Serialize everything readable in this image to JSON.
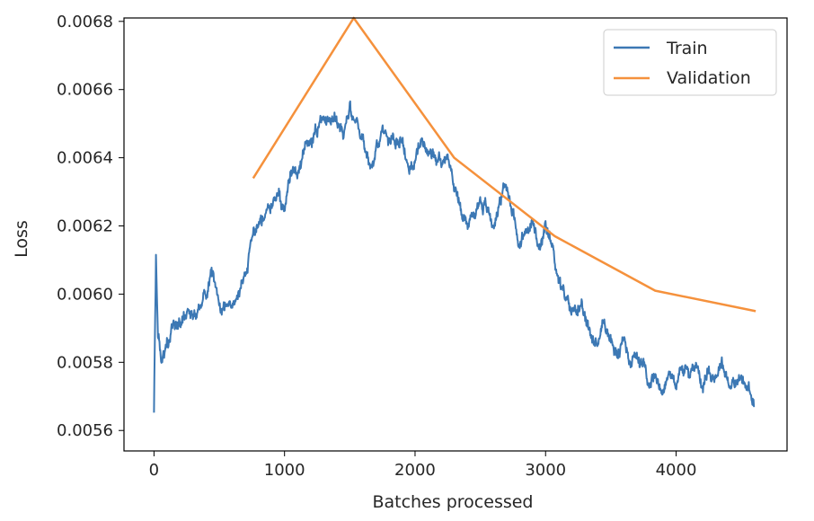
{
  "chart_data": {
    "type": "line",
    "xlabel": "Batches processed",
    "ylabel": "Loss",
    "xlim": [
      -230,
      4850
    ],
    "ylim": [
      0.00554,
      0.00681
    ],
    "x_ticks": [
      0,
      1000,
      2000,
      3000,
      4000
    ],
    "x_tick_labels": [
      "0",
      "1000",
      "2000",
      "3000",
      "4000"
    ],
    "y_ticks": [
      0.0056,
      0.0058,
      0.006,
      0.0062,
      0.0064,
      0.0066,
      0.0068
    ],
    "y_tick_labels": [
      "0.0056",
      "0.0058",
      "0.0060",
      "0.0062",
      "0.0064",
      "0.0066",
      "0.0068"
    ],
    "grid": false,
    "legend": {
      "placement": "top-right"
    },
    "series": [
      {
        "name": "Train",
        "color": "#3c78b4",
        "x": [
          0,
          15,
          30,
          60,
          100,
          150,
          200,
          250,
          300,
          350,
          400,
          450,
          480,
          520,
          560,
          600,
          650,
          700,
          760,
          800,
          850,
          900,
          950,
          1000,
          1050,
          1100,
          1150,
          1200,
          1250,
          1300,
          1350,
          1400,
          1450,
          1500,
          1540,
          1600,
          1650,
          1700,
          1750,
          1800,
          1850,
          1900,
          1950,
          2000,
          2050,
          2100,
          2150,
          2200,
          2250,
          2300,
          2350,
          2400,
          2450,
          2500,
          2550,
          2600,
          2650,
          2700,
          2750,
          2800,
          2850,
          2900,
          2950,
          3000,
          3050,
          3100,
          3150,
          3200,
          3250,
          3300,
          3350,
          3400,
          3450,
          3500,
          3550,
          3600,
          3650,
          3700,
          3750,
          3800,
          3850,
          3900,
          3950,
          4000,
          4050,
          4100,
          4150,
          4200,
          4250,
          4300,
          4350,
          4400,
          4450,
          4500,
          4550,
          4600
        ],
        "values": [
          0.00565,
          0.00611,
          0.00588,
          0.0058,
          0.00585,
          0.00592,
          0.0059,
          0.00595,
          0.00592,
          0.00598,
          0.006,
          0.00605,
          0.00598,
          0.00595,
          0.00598,
          0.00596,
          0.00598,
          0.00606,
          0.00618,
          0.00617,
          0.00622,
          0.00627,
          0.0063,
          0.00625,
          0.00635,
          0.00638,
          0.00643,
          0.00645,
          0.00647,
          0.00652,
          0.00655,
          0.00652,
          0.00648,
          0.00655,
          0.00652,
          0.00645,
          0.00638,
          0.00642,
          0.00648,
          0.00645,
          0.00647,
          0.00645,
          0.00637,
          0.00638,
          0.00646,
          0.00642,
          0.0064,
          0.00638,
          0.00642,
          0.00632,
          0.00625,
          0.00622,
          0.00623,
          0.00628,
          0.00625,
          0.0062,
          0.00628,
          0.00632,
          0.00625,
          0.00615,
          0.00618,
          0.00621,
          0.00612,
          0.00618,
          0.00614,
          0.00605,
          0.00598,
          0.00595,
          0.00597,
          0.00592,
          0.00588,
          0.00586,
          0.00592,
          0.00586,
          0.00582,
          0.00586,
          0.00581,
          0.00583,
          0.00578,
          0.00575,
          0.00576,
          0.00572,
          0.00577,
          0.00575,
          0.00578,
          0.00576,
          0.0058,
          0.00574,
          0.00578,
          0.00576,
          0.00581,
          0.00575,
          0.00573,
          0.00575,
          0.00572,
          0.00567
        ]
      },
      {
        "name": "Validation",
        "color": "#f5913c",
        "x": [
          760,
          1530,
          2300,
          3070,
          3840,
          4610
        ],
        "values": [
          0.00634,
          0.00681,
          0.0064,
          0.00617,
          0.00601,
          0.00595
        ]
      }
    ]
  }
}
